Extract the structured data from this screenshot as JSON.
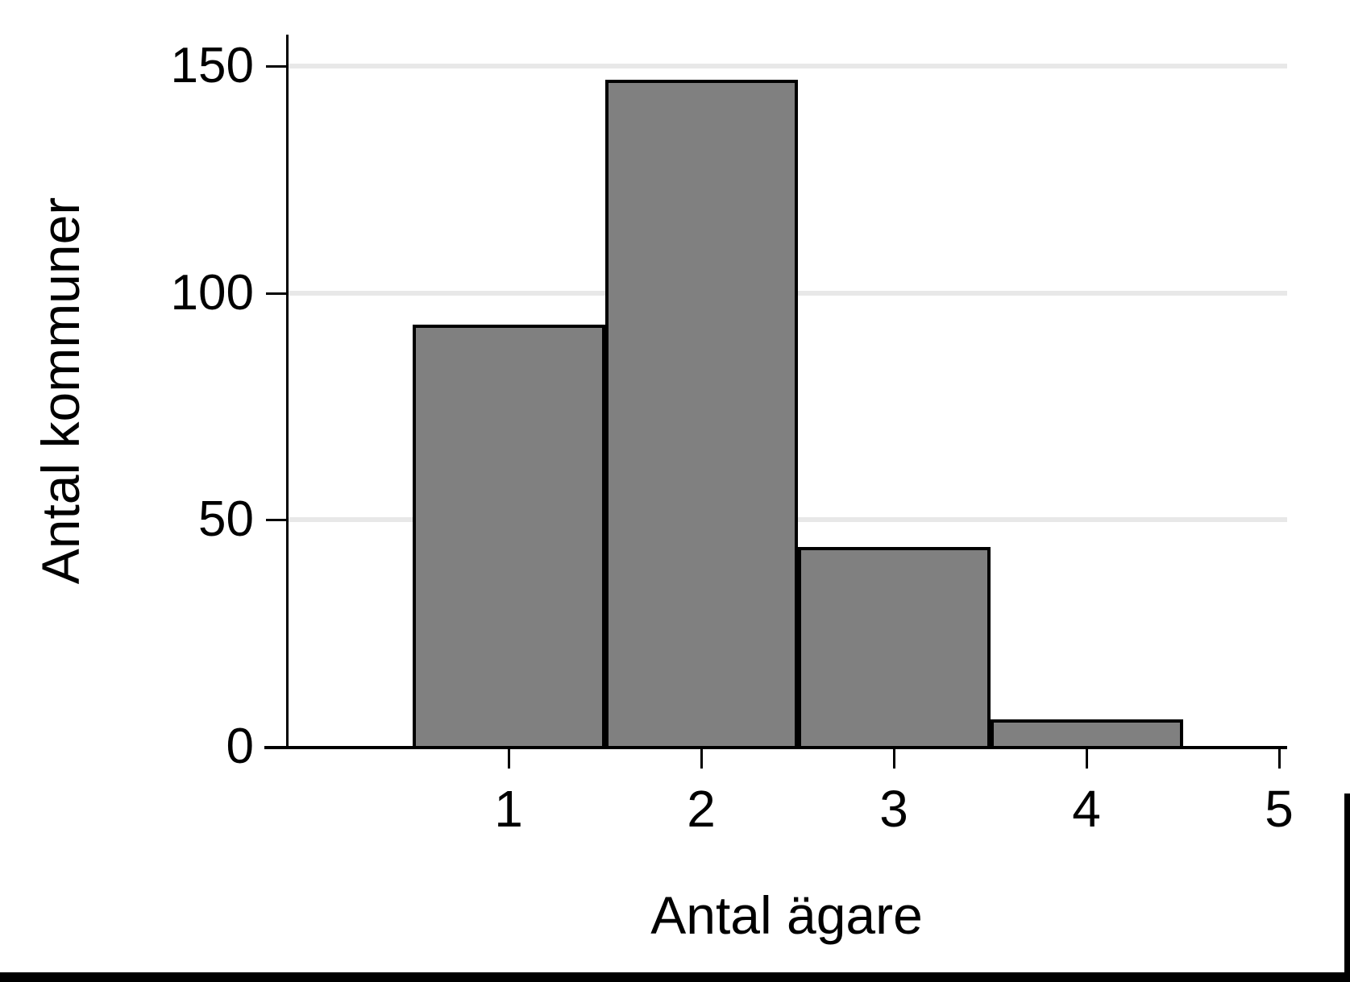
{
  "chart_data": {
    "type": "bar",
    "title": "",
    "x": [
      1,
      2,
      3,
      4
    ],
    "values": [
      93,
      147,
      44,
      6
    ],
    "bar_width": 1,
    "categories_note": "histogram: bars centered on integer x, width 1 unit",
    "xlabel": "Antal ägare",
    "ylabel": "Antal kommuner",
    "x_tick_labels": [
      "1",
      "2",
      "3",
      "4",
      "5"
    ],
    "x_tick_values": [
      1,
      2,
      3,
      4,
      5
    ],
    "y_tick_labels": [
      "0",
      "50",
      "100",
      "150"
    ],
    "y_tick_values": [
      0,
      50,
      100,
      150
    ],
    "ylim": [
      0,
      150
    ],
    "grid": "horizontal-gridlines-at-50-100-150",
    "legend": "none",
    "colors": {
      "bar_fill": "#808080",
      "bar_border": "#000000",
      "gridline": "#e8e8e8",
      "axis": "#000000",
      "background": "#ffffff"
    }
  },
  "page": {
    "bottom_rule": "black horizontal rule at page bottom",
    "right_rule": "black vertical rule at lower right edge"
  }
}
